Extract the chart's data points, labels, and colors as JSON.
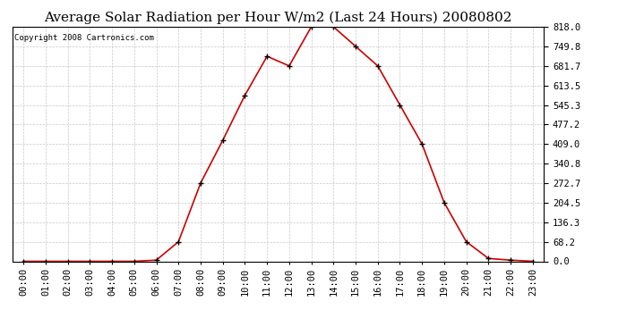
{
  "title": "Average Solar Radiation per Hour W/m2 (Last 24 Hours) 20080802",
  "copyright": "Copyright 2008 Cartronics.com",
  "hours": [
    "00:00",
    "01:00",
    "02:00",
    "03:00",
    "04:00",
    "05:00",
    "06:00",
    "07:00",
    "08:00",
    "09:00",
    "10:00",
    "11:00",
    "12:00",
    "13:00",
    "14:00",
    "15:00",
    "16:00",
    "17:00",
    "18:00",
    "19:00",
    "20:00",
    "21:00",
    "22:00",
    "23:00"
  ],
  "values": [
    0.0,
    0.0,
    0.0,
    0.0,
    0.0,
    0.0,
    4.0,
    68.2,
    272.7,
    422.0,
    579.0,
    715.0,
    681.7,
    818.0,
    818.0,
    749.8,
    681.7,
    545.3,
    409.0,
    204.5,
    68.2,
    10.0,
    4.0,
    0.0
  ],
  "line_color": "#cc0000",
  "marker_color": "#000000",
  "background_color": "#ffffff",
  "grid_color": "#c8c8c8",
  "yticks": [
    0.0,
    68.2,
    136.3,
    204.5,
    272.7,
    340.8,
    409.0,
    477.2,
    545.3,
    613.5,
    681.7,
    749.8,
    818.0
  ],
  "ymax": 818.0,
  "ymin": 0.0,
  "title_fontsize": 11,
  "copyright_fontsize": 6.5,
  "tick_fontsize": 7.5
}
